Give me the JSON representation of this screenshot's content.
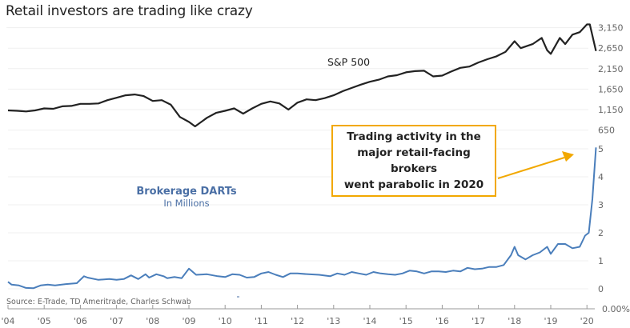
{
  "title": "Retail investors are trading like crazy",
  "source": "Source: E-Trade, TD Ameritrade, Charles Schwab",
  "annotation": {
    "lines": [
      "Trading activity in the",
      "major retail-facing brokers",
      "went parabolic in 2020"
    ],
    "border_color": "#f2a800",
    "arrow_color": "#f2a800"
  },
  "colors": {
    "sp500": "#222222",
    "darts": "#4a7ebb",
    "gridline": "#efefef",
    "axis": "#999999",
    "annotation": "#f2a800"
  },
  "chart_data": [
    {
      "type": "line",
      "title": "Retail investors are trading like crazy",
      "series_label": "S&P 500",
      "ylabel": "",
      "yticks": [
        "3,150",
        "2,650",
        "2,150",
        "1,650",
        "1,150",
        "650"
      ],
      "ytick_values": [
        3150,
        2650,
        2150,
        1650,
        1150,
        650
      ],
      "ylim": [
        650,
        3300
      ],
      "x": [
        2004.0,
        2004.25,
        2004.5,
        2004.75,
        2005.0,
        2005.25,
        2005.5,
        2005.75,
        2006.0,
        2006.25,
        2006.5,
        2006.75,
        2007.0,
        2007.25,
        2007.5,
        2007.75,
        2008.0,
        2008.25,
        2008.5,
        2008.75,
        2009.0,
        2009.17,
        2009.5,
        2009.75,
        2010.0,
        2010.25,
        2010.5,
        2010.75,
        2011.0,
        2011.25,
        2011.5,
        2011.75,
        2012.0,
        2012.25,
        2012.5,
        2012.75,
        2013.0,
        2013.25,
        2013.5,
        2013.75,
        2014.0,
        2014.25,
        2014.5,
        2014.75,
        2015.0,
        2015.25,
        2015.5,
        2015.75,
        2016.0,
        2016.25,
        2016.5,
        2016.75,
        2017.0,
        2017.25,
        2017.5,
        2017.75,
        2018.0,
        2018.17,
        2018.5,
        2018.75,
        2018.9,
        2019.0,
        2019.25,
        2019.4,
        2019.6,
        2019.8,
        2020.0,
        2020.08,
        2020.25
      ],
      "values": [
        1130,
        1120,
        1105,
        1130,
        1180,
        1170,
        1230,
        1240,
        1290,
        1290,
        1300,
        1380,
        1440,
        1500,
        1520,
        1480,
        1360,
        1380,
        1270,
        970,
        850,
        740,
        950,
        1070,
        1120,
        1180,
        1050,
        1180,
        1290,
        1350,
        1300,
        1150,
        1320,
        1400,
        1380,
        1430,
        1500,
        1600,
        1680,
        1760,
        1830,
        1880,
        1960,
        1990,
        2060,
        2090,
        2100,
        1960,
        1980,
        2080,
        2170,
        2200,
        2300,
        2380,
        2450,
        2560,
        2820,
        2650,
        2750,
        2900,
        2600,
        2510,
        2900,
        2750,
        2980,
        3040,
        3230,
        3230,
        2580
      ]
    },
    {
      "type": "line",
      "series_label": "Brokerage DARTs",
      "series_sublabel": "In Millions",
      "yticks": [
        "5",
        "4",
        "3",
        "2",
        "1",
        "0"
      ],
      "ytick_values": [
        5,
        4,
        3,
        2,
        1,
        0
      ],
      "ylim": [
        0,
        5.2
      ],
      "extra_axis_label": "0.00%",
      "x": [
        2004.0,
        2004.1,
        2004.3,
        2004.5,
        2004.7,
        2004.9,
        2005.1,
        2005.3,
        2005.6,
        2005.9,
        2006.1,
        2006.2,
        2006.5,
        2006.8,
        2007.0,
        2007.2,
        2007.4,
        2007.6,
        2007.8,
        2007.9,
        2008.1,
        2008.3,
        2008.4,
        2008.6,
        2008.8,
        2009.0,
        2009.2,
        2009.5,
        2009.8,
        2010.0,
        2010.2,
        2010.4,
        2010.6,
        2010.8,
        2011.0,
        2011.2,
        2011.4,
        2011.6,
        2011.8,
        2012.0,
        2012.3,
        2012.6,
        2012.9,
        2013.1,
        2013.3,
        2013.5,
        2013.7,
        2013.9,
        2014.1,
        2014.3,
        2014.5,
        2014.7,
        2014.9,
        2015.1,
        2015.3,
        2015.5,
        2015.7,
        2015.9,
        2016.1,
        2016.3,
        2016.5,
        2016.7,
        2016.9,
        2017.1,
        2017.3,
        2017.5,
        2017.7,
        2017.9,
        2018.0,
        2018.1,
        2018.3,
        2018.5,
        2018.7,
        2018.9,
        2019.0,
        2019.2,
        2019.4,
        2019.6,
        2019.8,
        2019.95,
        2020.05,
        2020.15,
        2020.25
      ],
      "values": [
        0.25,
        0.15,
        0.12,
        0.03,
        0.02,
        0.12,
        0.15,
        0.12,
        0.17,
        0.2,
        0.45,
        0.4,
        0.32,
        0.35,
        0.32,
        0.35,
        0.48,
        0.35,
        0.52,
        0.4,
        0.52,
        0.45,
        0.38,
        0.42,
        0.38,
        0.72,
        0.5,
        0.52,
        0.45,
        0.42,
        0.52,
        0.5,
        0.4,
        0.42,
        0.55,
        0.6,
        0.5,
        0.42,
        0.55,
        0.55,
        0.52,
        0.5,
        0.45,
        0.55,
        0.5,
        0.6,
        0.55,
        0.5,
        0.6,
        0.55,
        0.52,
        0.5,
        0.55,
        0.65,
        0.62,
        0.55,
        0.62,
        0.62,
        0.6,
        0.65,
        0.62,
        0.75,
        0.7,
        0.72,
        0.78,
        0.78,
        0.85,
        1.2,
        1.5,
        1.2,
        1.05,
        1.2,
        1.3,
        1.5,
        1.25,
        1.6,
        1.6,
        1.45,
        1.5,
        1.9,
        2.0,
        3.2,
        5.05
      ]
    }
  ],
  "x_axis": {
    "tick_labels": [
      "'04",
      "'05",
      "'06",
      "'07",
      "'08",
      "'09",
      "'10",
      "'11",
      "'12",
      "'13",
      "'14",
      "'15",
      "'16",
      "'17",
      "'18",
      "'19",
      "'20"
    ],
    "tick_values": [
      2004,
      2005,
      2006,
      2007,
      2008,
      2009,
      2010,
      2011,
      2012,
      2013,
      2014,
      2015,
      2016,
      2017,
      2018,
      2019,
      2020
    ]
  },
  "labels": {
    "sp500": "S&P 500",
    "darts_title": "Brokerage DARTs",
    "darts_sub": "In Millions"
  }
}
